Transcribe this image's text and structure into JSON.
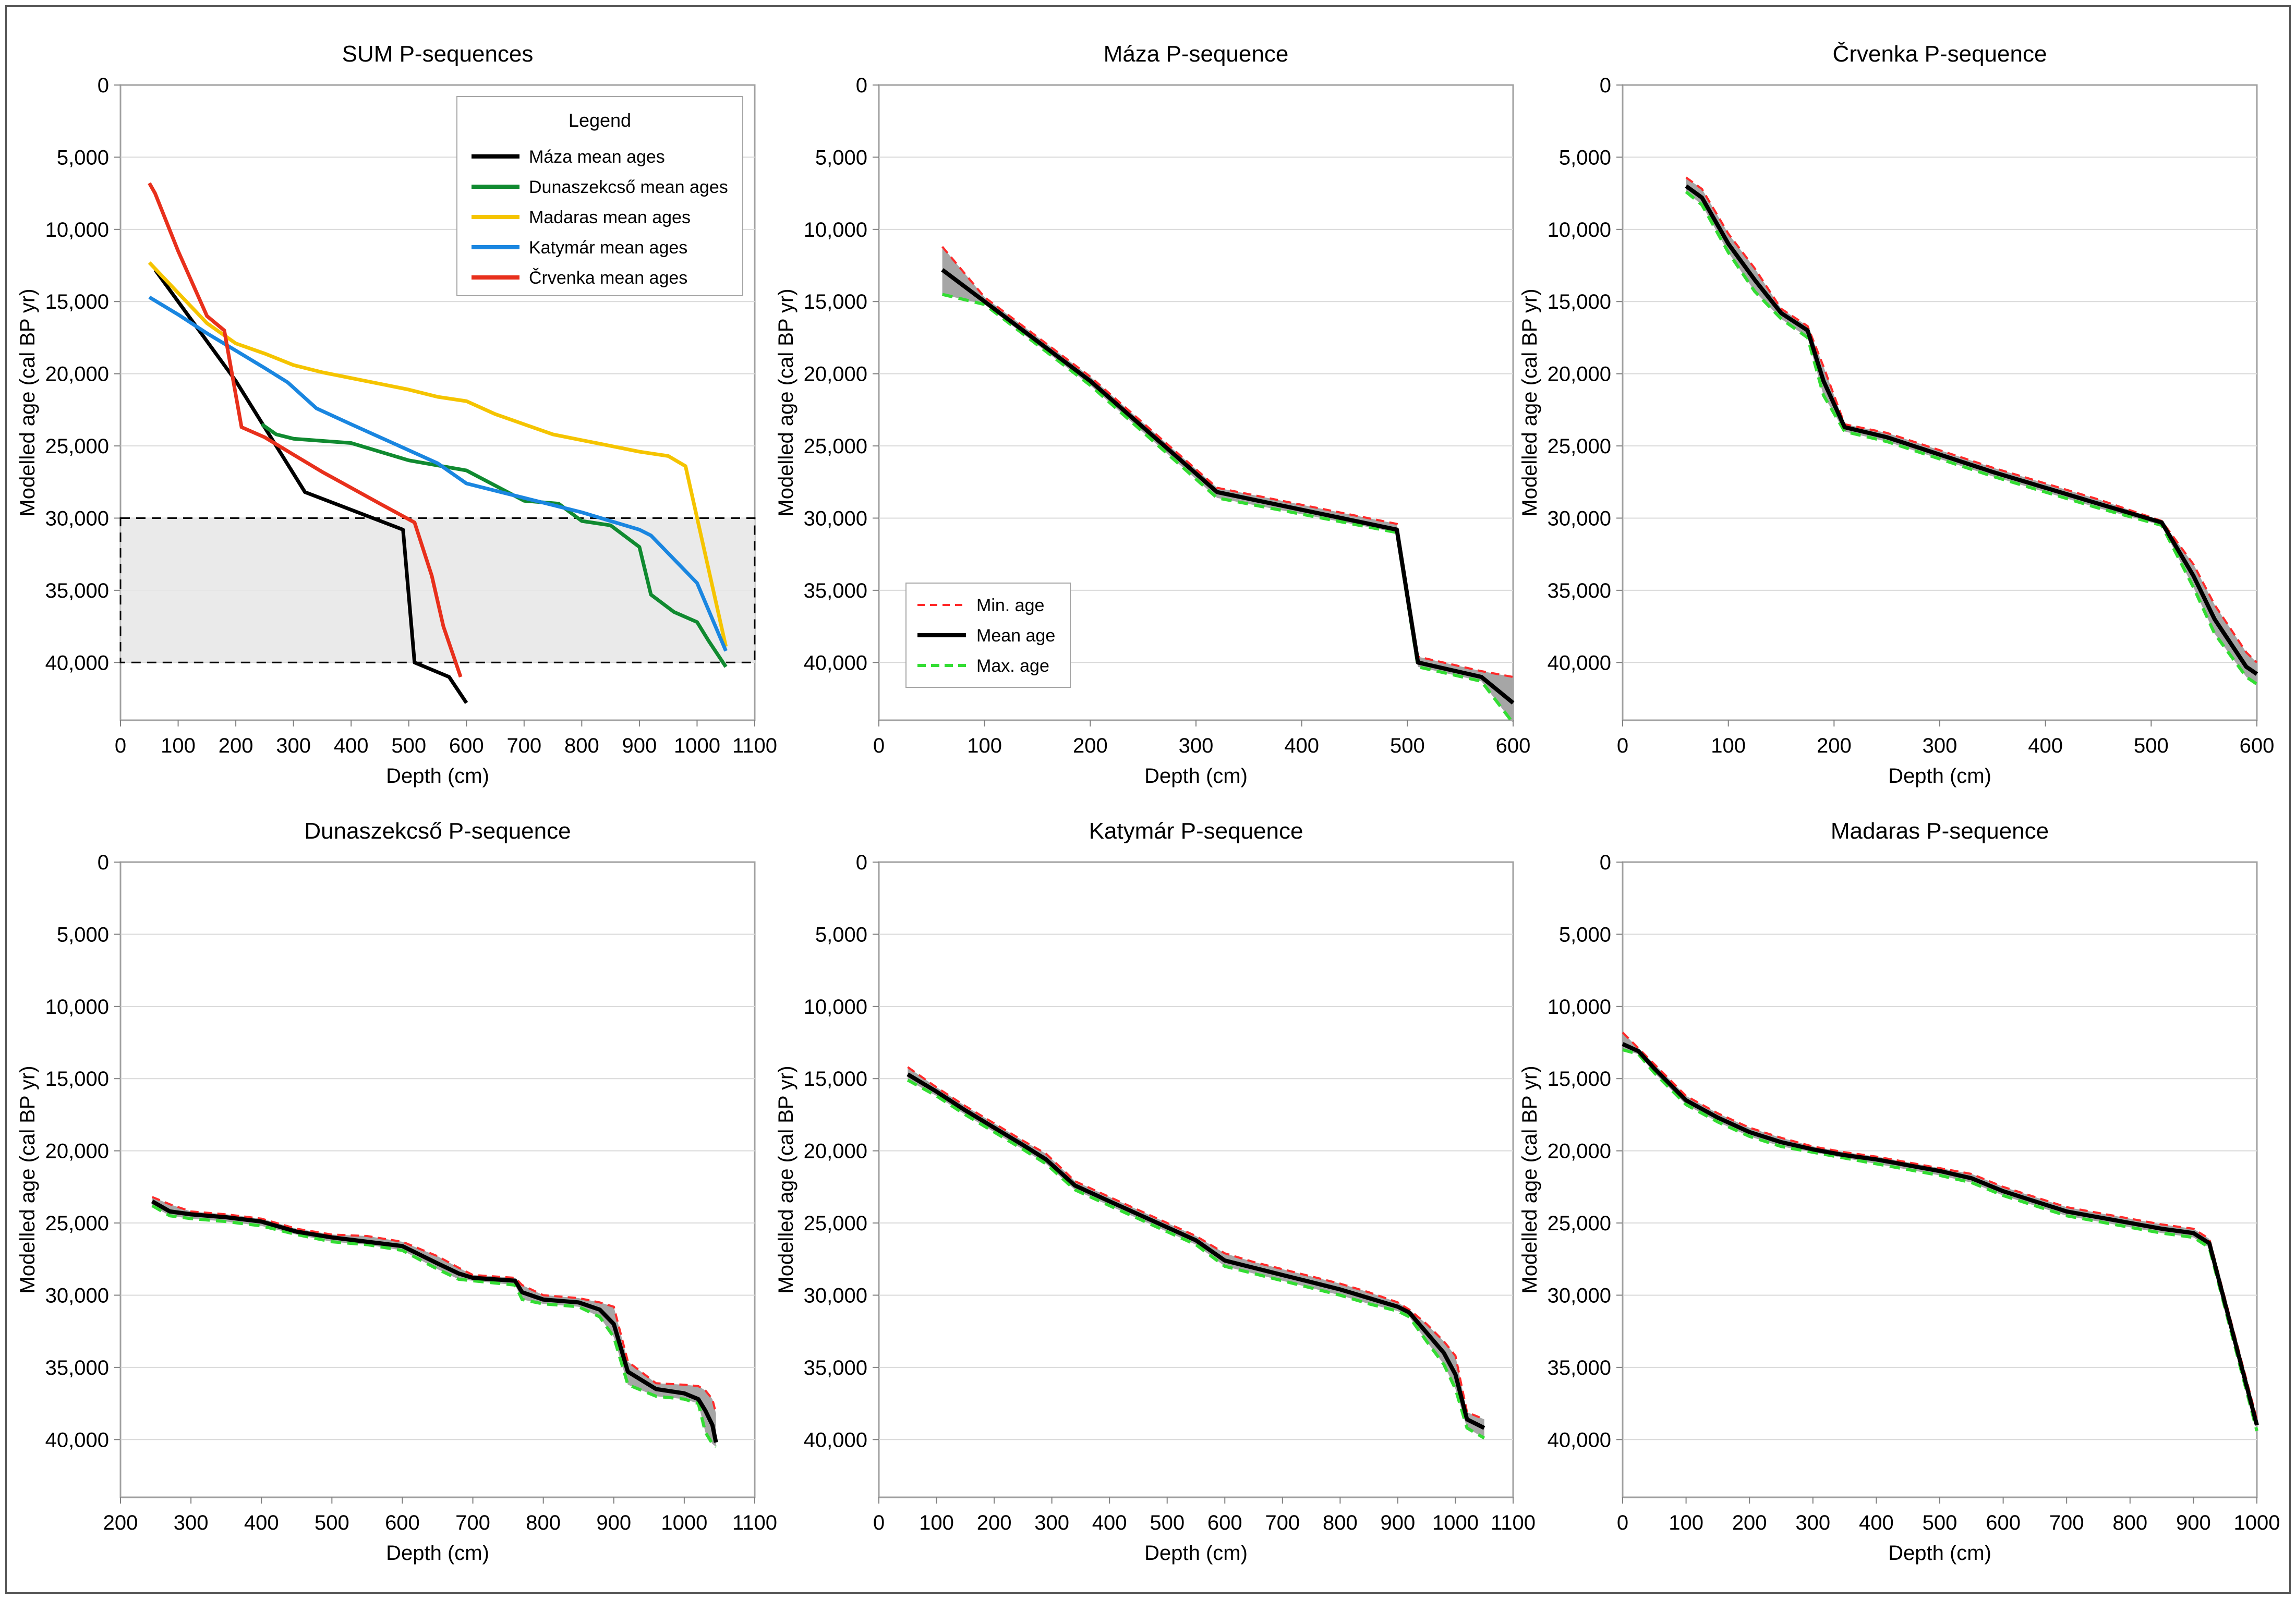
{
  "chart_data": [
    {
      "type": "line",
      "title": "SUM P-sequences",
      "xlabel": "Depth (cm)",
      "ylabel": "Modelled age (cal BP yr)",
      "xlim": [
        0,
        1100
      ],
      "ylim": [
        0,
        44000
      ],
      "xticks": [
        0,
        100,
        200,
        300,
        400,
        500,
        600,
        700,
        800,
        900,
        1000,
        1100
      ],
      "yticks": [
        0,
        5000,
        10000,
        15000,
        20000,
        25000,
        30000,
        35000,
        40000
      ],
      "yticklabels": [
        "0",
        "5,000",
        "10,000",
        "15,000",
        "20,000",
        "25,000",
        "30,000",
        "35,000",
        "40,000"
      ],
      "highlight_band": {
        "y0": 30000,
        "y1": 40000
      },
      "legend": {
        "title": "Legend",
        "placement": "top-right"
      },
      "series": [
        {
          "name": "Máza mean ages",
          "color": "#000000",
          "x": [
            60,
            100,
            200,
            320,
            490,
            510,
            570,
            600
          ],
          "y": [
            12800,
            15000,
            20500,
            28200,
            30800,
            40000,
            41000,
            42800
          ]
        },
        {
          "name": "Dunaszekcső mean ages",
          "color": "#108a30",
          "x": [
            245,
            270,
            300,
            400,
            500,
            600,
            700,
            760,
            800,
            850,
            900,
            920,
            960,
            1000,
            1020,
            1050
          ],
          "y": [
            23500,
            24200,
            24500,
            24800,
            26000,
            26700,
            28800,
            29000,
            30200,
            30500,
            32000,
            35300,
            36500,
            37200,
            38500,
            40300
          ]
        },
        {
          "name": "Madaras mean ages",
          "color": "#f5c400",
          "x": [
            50,
            100,
            150,
            200,
            250,
            300,
            350,
            400,
            450,
            500,
            550,
            600,
            650,
            700,
            750,
            800,
            850,
            900,
            950,
            980,
            1050
          ],
          "y": [
            12300,
            14400,
            16500,
            17900,
            18600,
            19400,
            19900,
            20300,
            20700,
            21100,
            21600,
            21900,
            22800,
            23500,
            24200,
            24600,
            25000,
            25400,
            25700,
            26400,
            38900
          ]
        },
        {
          "name": "Katymár mean ages",
          "color": "#1a86e0",
          "x": [
            50,
            100,
            150,
            200,
            250,
            290,
            340,
            400,
            450,
            500,
            550,
            600,
            650,
            700,
            750,
            800,
            850,
            900,
            920,
            1000,
            1050
          ],
          "y": [
            14700,
            15900,
            17200,
            18400,
            19600,
            20600,
            22400,
            23500,
            24400,
            25300,
            26200,
            27600,
            28100,
            28600,
            29100,
            29600,
            30200,
            30800,
            31200,
            34500,
            39200
          ]
        },
        {
          "name": "Črvenka mean ages",
          "color": "#e8301c",
          "x": [
            50,
            60,
            100,
            150,
            180,
            210,
            250,
            300,
            350,
            400,
            450,
            510,
            540,
            560,
            590
          ],
          "y": [
            6800,
            7500,
            11500,
            16000,
            17000,
            23700,
            24400,
            25600,
            26800,
            27900,
            29000,
            30300,
            34000,
            37500,
            41000
          ]
        }
      ]
    },
    {
      "type": "line",
      "title": "Máza P-sequence",
      "xlabel": "Depth (cm)",
      "ylabel": "Modelled age (cal BP yr)",
      "xlim": [
        0,
        600
      ],
      "ylim": [
        0,
        44000
      ],
      "xticks": [
        0,
        100,
        200,
        300,
        400,
        500,
        600
      ],
      "yticks": [
        0,
        5000,
        10000,
        15000,
        20000,
        25000,
        30000,
        35000,
        40000
      ],
      "yticklabels": [
        "0",
        "5,000",
        "10,000",
        "15,000",
        "20,000",
        "25,000",
        "30,000",
        "35,000",
        "40,000"
      ],
      "legend": {
        "placement": "bottom-left",
        "entries": [
          "Min. age",
          "Mean age",
          "Max. age"
        ]
      },
      "x": [
        60,
        100,
        200,
        320,
        490,
        510,
        570,
        600
      ],
      "mean": [
        12800,
        15000,
        20500,
        28200,
        30800,
        40000,
        41000,
        42800
      ],
      "min": [
        11200,
        14700,
        20200,
        27900,
        30400,
        39600,
        40600,
        41000
      ],
      "max": [
        14500,
        15200,
        20800,
        28600,
        31000,
        40300,
        41300,
        44200
      ]
    },
    {
      "type": "line",
      "title": "Črvenka P-sequence",
      "xlabel": "Depth (cm)",
      "ylabel": "Modelled age (cal BP yr)",
      "xlim": [
        0,
        600
      ],
      "ylim": [
        0,
        44000
      ],
      "xticks": [
        0,
        100,
        200,
        300,
        400,
        500,
        600
      ],
      "yticks": [
        0,
        5000,
        10000,
        15000,
        20000,
        25000,
        30000,
        35000,
        40000
      ],
      "yticklabels": [
        "0",
        "5,000",
        "10,000",
        "15,000",
        "20,000",
        "25,000",
        "30,000",
        "35,000",
        "40,000"
      ],
      "x": [
        60,
        75,
        100,
        125,
        150,
        175,
        190,
        210,
        250,
        300,
        350,
        400,
        450,
        510,
        540,
        560,
        590,
        600
      ],
      "mean": [
        7000,
        7800,
        11000,
        13500,
        15800,
        17000,
        20500,
        23700,
        24400,
        25600,
        26800,
        27900,
        29000,
        30300,
        34000,
        37000,
        40300,
        40800
      ],
      "min": [
        6400,
        7200,
        10300,
        12700,
        15500,
        16700,
        19500,
        23500,
        24100,
        25300,
        26500,
        27600,
        28700,
        30200,
        33200,
        36000,
        39300,
        40000
      ],
      "max": [
        7400,
        8300,
        11600,
        14300,
        16200,
        17500,
        21500,
        24000,
        24700,
        25900,
        27100,
        28200,
        29300,
        30500,
        34800,
        38000,
        41000,
        41500
      ]
    },
    {
      "type": "line",
      "title": "Dunaszekcső P-sequence",
      "xlabel": "Depth (cm)",
      "ylabel": "Modelled age (cal BP yr)",
      "xlim": [
        200,
        1100
      ],
      "ylim": [
        0,
        44000
      ],
      "xticks": [
        200,
        300,
        400,
        500,
        600,
        700,
        800,
        900,
        1000,
        1100
      ],
      "yticks": [
        0,
        5000,
        10000,
        15000,
        20000,
        25000,
        30000,
        35000,
        40000
      ],
      "yticklabels": [
        "0",
        "5,000",
        "10,000",
        "15,000",
        "20,000",
        "25,000",
        "30,000",
        "35,000",
        "40,000"
      ],
      "x": [
        245,
        270,
        300,
        350,
        400,
        450,
        500,
        550,
        600,
        650,
        680,
        700,
        760,
        770,
        800,
        850,
        880,
        900,
        920,
        960,
        1000,
        1020,
        1030,
        1040,
        1045
      ],
      "mean": [
        23500,
        24200,
        24400,
        24600,
        24900,
        25600,
        26000,
        26300,
        26600,
        27800,
        28500,
        28800,
        29000,
        29800,
        30300,
        30500,
        31000,
        32000,
        35300,
        36500,
        36800,
        37200,
        38000,
        39000,
        40200
      ],
      "min": [
        23200,
        23700,
        24200,
        24400,
        24700,
        25400,
        25800,
        25900,
        26300,
        27300,
        28100,
        28600,
        28800,
        29300,
        30000,
        30200,
        30500,
        30800,
        34600,
        36100,
        36200,
        36300,
        36600,
        37200,
        38200
      ],
      "max": [
        23800,
        24500,
        24700,
        24900,
        25200,
        25800,
        26300,
        26500,
        26900,
        28200,
        28900,
        29000,
        29300,
        30300,
        30600,
        30800,
        31500,
        32900,
        36200,
        37000,
        37200,
        37500,
        39500,
        40300,
        40500
      ]
    },
    {
      "type": "line",
      "title": "Katymár P-sequence",
      "xlabel": "Depth (cm)",
      "ylabel": "Modelled age (cal BP yr)",
      "xlim": [
        0,
        1100
      ],
      "ylim": [
        0,
        44000
      ],
      "xticks": [
        0,
        100,
        200,
        300,
        400,
        500,
        600,
        700,
        800,
        900,
        1000,
        1100
      ],
      "yticks": [
        0,
        5000,
        10000,
        15000,
        20000,
        25000,
        30000,
        35000,
        40000
      ],
      "yticklabels": [
        "0",
        "5,000",
        "10,000",
        "15,000",
        "20,000",
        "25,000",
        "30,000",
        "35,000",
        "40,000"
      ],
      "x": [
        50,
        100,
        150,
        200,
        250,
        290,
        340,
        400,
        450,
        500,
        550,
        600,
        650,
        700,
        750,
        800,
        850,
        900,
        920,
        950,
        980,
        1000,
        1020,
        1050
      ],
      "mean": [
        14700,
        15900,
        17200,
        18400,
        19600,
        20600,
        22400,
        23500,
        24400,
        25300,
        26200,
        27600,
        28100,
        28600,
        29100,
        29600,
        30200,
        30800,
        31200,
        32600,
        34000,
        35500,
        38600,
        39200
      ],
      "min": [
        14200,
        15600,
        16900,
        18100,
        19300,
        20200,
        22100,
        23200,
        24100,
        25000,
        25900,
        27100,
        27700,
        28200,
        28700,
        29200,
        29800,
        30500,
        31000,
        32000,
        33200,
        34200,
        38100,
        38600
      ],
      "max": [
        15100,
        16200,
        17500,
        18700,
        19900,
        20900,
        22700,
        23800,
        24700,
        25600,
        26500,
        28000,
        28500,
        29000,
        29500,
        30000,
        30600,
        31100,
        31500,
        33200,
        34800,
        36500,
        39200,
        39900
      ]
    },
    {
      "type": "line",
      "title": "Madaras P-sequence",
      "xlabel": "Depth (cm)",
      "ylabel": "Modelled age (cal BP yr)",
      "xlim": [
        0,
        1000
      ],
      "ylim": [
        0,
        44000
      ],
      "xticks": [
        0,
        100,
        200,
        300,
        400,
        500,
        600,
        700,
        800,
        900,
        1000
      ],
      "yticks": [
        0,
        5000,
        10000,
        15000,
        20000,
        25000,
        30000,
        35000,
        40000
      ],
      "yticklabels": [
        "0",
        "5,000",
        "10,000",
        "15,000",
        "20,000",
        "25,000",
        "30,000",
        "35,000",
        "40,000"
      ],
      "x": [
        0,
        25,
        50,
        100,
        150,
        200,
        250,
        300,
        350,
        400,
        450,
        500,
        550,
        600,
        650,
        700,
        750,
        800,
        850,
        900,
        925,
        1000
      ],
      "mean": [
        12600,
        13100,
        14300,
        16500,
        17700,
        18700,
        19400,
        19900,
        20300,
        20600,
        21000,
        21400,
        21900,
        22800,
        23500,
        24200,
        24600,
        25000,
        25400,
        25700,
        26400,
        39000
      ],
      "min": [
        11800,
        12900,
        14000,
        16200,
        17400,
        18400,
        19100,
        19700,
        20100,
        20400,
        20800,
        21200,
        21600,
        22500,
        23200,
        23900,
        24300,
        24700,
        25100,
        25400,
        26100,
        38600
      ],
      "max": [
        13000,
        13300,
        14600,
        16800,
        18000,
        19000,
        19700,
        20100,
        20500,
        20900,
        21300,
        21700,
        22200,
        23100,
        23800,
        24500,
        24900,
        25300,
        25700,
        26000,
        26700,
        39400
      ]
    }
  ]
}
